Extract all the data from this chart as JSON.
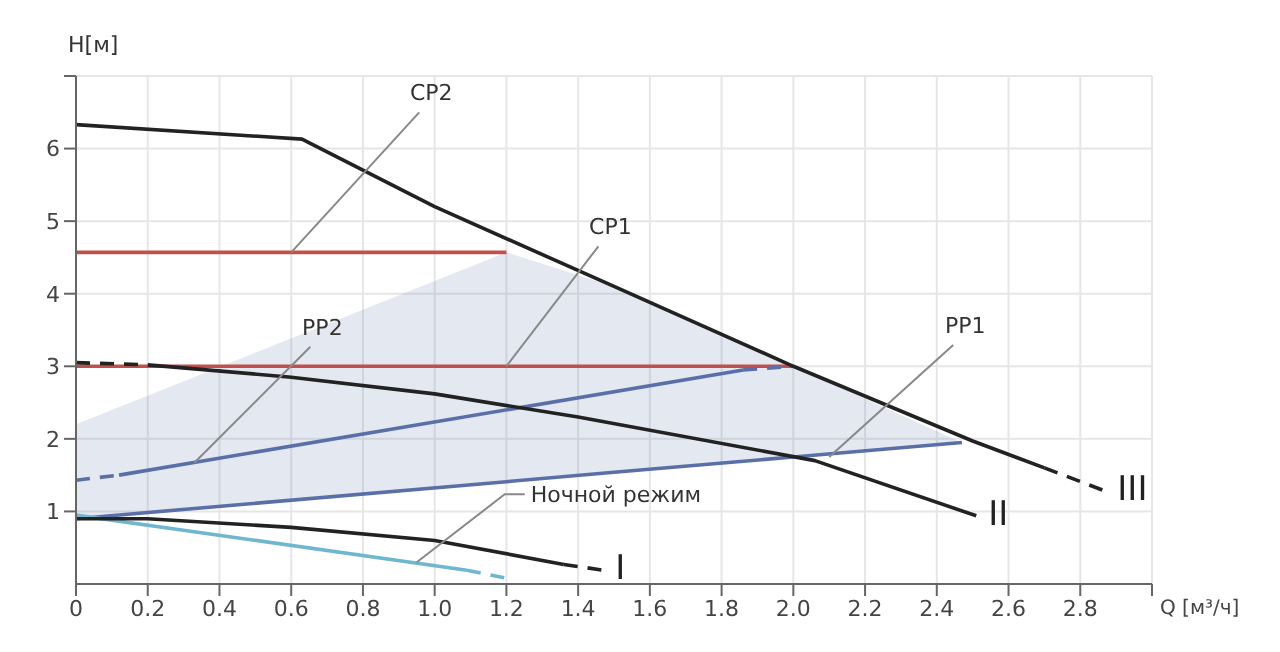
{
  "chart_data": {
    "type": "line",
    "xlabel": "Q [м³/ч]",
    "ylabel": "H[м]",
    "xlim": [
      0,
      3
    ],
    "ylim": [
      0,
      7
    ],
    "xticks": [
      0,
      0.2,
      0.4,
      0.6,
      0.8,
      {
        "value": 1,
        "label": "1.0"
      },
      1.2,
      1.4,
      1.6,
      1.8,
      {
        "value": 2,
        "label": "2.0"
      },
      2.2,
      2.4,
      2.6,
      2.8,
      {
        "value": 3,
        "label": null
      }
    ],
    "yticks": [
      1,
      2,
      3,
      4,
      5,
      6,
      {
        "value": 7,
        "label": null
      }
    ],
    "grid": true,
    "legend": false,
    "marker": "none",
    "series": [
      {
        "color": "#5a6fa8",
        "x": [
          0,
          1.2,
          1.5,
          2.0,
          2.47
        ],
        "values": [
          0.9,
          1.41,
          1.54,
          1.75,
          1.95
        ],
        "lower": [
          0.9,
          1.41,
          1.54,
          1.75,
          1.95
        ],
        "upper": [
          2.2,
          4.57,
          4.1,
          3.0,
          1.95
        ]
      },
      {
        "color": "#c0504d",
        "x": [
          0,
          1.2
        ],
        "values": [
          4.57,
          4.57
        ]
      },
      {
        "color": "#c0504d",
        "x": [
          0,
          2.0
        ],
        "values": [
          3.0,
          3.0
        ]
      },
      {
        "color": "#5a6fa8",
        "x": [
          0.12,
          1.86
        ],
        "values": [
          1.5,
          2.95
        ]
      },
      {
        "color": "#5a6fa8",
        "line_style": "dashed",
        "x": [
          0,
          0.12
        ],
        "values": [
          1.43,
          1.5
        ]
      },
      {
        "color": "#5a6fa8",
        "line_style": "dashed",
        "x": [
          1.86,
          2.0
        ],
        "values": [
          2.95,
          3.0
        ]
      },
      {
        "color": "#6fb6d0",
        "x": [
          0,
          1.09
        ],
        "values": [
          0.95,
          0.19
        ]
      },
      {
        "color": "#6fb6d0",
        "line_style": "dashed",
        "x": [
          1.09,
          1.2
        ],
        "values": [
          0.19,
          0.08
        ]
      },
      {
        "color": "#222222",
        "x": [
          0,
          0.63,
          1.0,
          1.5,
          2.0,
          2.5,
          2.7
        ],
        "values": [
          6.33,
          6.13,
          5.2,
          4.1,
          3.0,
          1.97,
          1.6
        ]
      },
      {
        "name": "III",
        "color": "#222222",
        "line_style": "dashed",
        "x": [
          2.7,
          2.87
        ],
        "values": [
          1.6,
          1.28
        ]
      },
      {
        "color": "#222222",
        "line_style": "dashed",
        "x": [
          0,
          0.2
        ],
        "values": [
          3.05,
          3.02
        ]
      },
      {
        "name": "II",
        "color": "#222222",
        "x": [
          0.2,
          0.6,
          1.0,
          1.4,
          2.06,
          2.51
        ],
        "values": [
          3.02,
          2.85,
          2.62,
          2.3,
          1.7,
          0.94
        ]
      },
      {
        "color": "#222222",
        "x": [
          0,
          0.2,
          0.6,
          1.0,
          1.36
        ],
        "values": [
          0.9,
          0.9,
          0.78,
          0.6,
          0.27
        ]
      },
      {
        "name": "I",
        "color": "#222222",
        "line_style": "dashed",
        "x": [
          1.36,
          1.47
        ],
        "values": [
          0.27,
          0.19
        ]
      }
    ],
    "annotations": [
      {
        "text": "CP2",
        "x": 0.6,
        "y": 4.57
      },
      {
        "text": "CP1",
        "x": 1.2,
        "y": 3.0
      },
      {
        "text": "PP2",
        "x": 0.33,
        "y": 1.67
      },
      {
        "text": "PP1",
        "x": 2.1,
        "y": 1.75
      },
      {
        "text": "Ночной режим",
        "x": 0.95,
        "y": 0.3
      }
    ]
  }
}
